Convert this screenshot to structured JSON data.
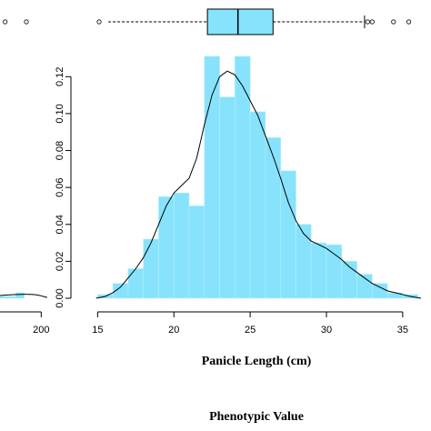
{
  "colors": {
    "bar_fill": "#87e3fb",
    "bar_edge": "#b6eefd",
    "box_fill": "#87e3fb",
    "curve": "#000000",
    "axis": "#000000"
  },
  "chart_data": [
    {
      "type": "histogram",
      "xlabel": "Panicle Length (cm)",
      "ylabel": "",
      "xlim": [
        14.8,
        36.2
      ],
      "ylim": [
        0,
        0.13
      ],
      "x_ticks": [
        15,
        20,
        25,
        30,
        35
      ],
      "x_tick_labels": [
        "15",
        "20",
        "25",
        "30",
        "35"
      ],
      "y_ticks": [
        0.0,
        0.02,
        0.04,
        0.06,
        0.08,
        0.1,
        0.12
      ],
      "y_tick_labels": [
        "0.00",
        "0.02",
        "0.04",
        "0.06",
        "0.08",
        "0.10",
        "0.12"
      ],
      "bins": [
        {
          "start": 15,
          "end": 16,
          "density": 0.002
        },
        {
          "start": 16,
          "end": 17,
          "density": 0.008
        },
        {
          "start": 17,
          "end": 18,
          "density": 0.016
        },
        {
          "start": 18,
          "end": 19,
          "density": 0.032
        },
        {
          "start": 19,
          "end": 20,
          "density": 0.055
        },
        {
          "start": 20,
          "end": 21,
          "density": 0.057
        },
        {
          "start": 21,
          "end": 22,
          "density": 0.05
        },
        {
          "start": 22,
          "end": 23,
          "density": 0.131
        },
        {
          "start": 23,
          "end": 24,
          "density": 0.109
        },
        {
          "start": 24,
          "end": 25,
          "density": 0.131
        },
        {
          "start": 25,
          "end": 26,
          "density": 0.101
        },
        {
          "start": 26,
          "end": 27,
          "density": 0.087
        },
        {
          "start": 27,
          "end": 28,
          "density": 0.069
        },
        {
          "start": 28,
          "end": 29,
          "density": 0.04
        },
        {
          "start": 29,
          "end": 30,
          "density": 0.03
        },
        {
          "start": 30,
          "end": 31,
          "density": 0.029
        },
        {
          "start": 31,
          "end": 32,
          "density": 0.02
        },
        {
          "start": 32,
          "end": 33,
          "density": 0.013
        },
        {
          "start": 33,
          "end": 34,
          "density": 0.008
        },
        {
          "start": 34,
          "end": 35,
          "density": 0.003
        },
        {
          "start": 35,
          "end": 36,
          "density": 0.002
        }
      ],
      "density_curve": [
        [
          14.9,
          0.0
        ],
        [
          15.5,
          0.001
        ],
        [
          16.0,
          0.003
        ],
        [
          16.5,
          0.006
        ],
        [
          17.0,
          0.011
        ],
        [
          17.5,
          0.016
        ],
        [
          18.0,
          0.022
        ],
        [
          18.5,
          0.03
        ],
        [
          19.0,
          0.04
        ],
        [
          19.5,
          0.05
        ],
        [
          20.0,
          0.057
        ],
        [
          20.5,
          0.061
        ],
        [
          21.0,
          0.065
        ],
        [
          21.5,
          0.076
        ],
        [
          22.0,
          0.094
        ],
        [
          22.5,
          0.11
        ],
        [
          23.0,
          0.12
        ],
        [
          23.5,
          0.123
        ],
        [
          24.0,
          0.121
        ],
        [
          24.5,
          0.115
        ],
        [
          25.0,
          0.107
        ],
        [
          25.5,
          0.099
        ],
        [
          26.0,
          0.088
        ],
        [
          26.5,
          0.077
        ],
        [
          27.0,
          0.065
        ],
        [
          27.5,
          0.052
        ],
        [
          28.0,
          0.042
        ],
        [
          28.5,
          0.035
        ],
        [
          29.0,
          0.031
        ],
        [
          29.5,
          0.029
        ],
        [
          30.0,
          0.027
        ],
        [
          30.5,
          0.024
        ],
        [
          31.0,
          0.021
        ],
        [
          31.5,
          0.017
        ],
        [
          32.0,
          0.014
        ],
        [
          32.5,
          0.011
        ],
        [
          33.0,
          0.008
        ],
        [
          33.5,
          0.006
        ],
        [
          34.0,
          0.004
        ],
        [
          34.5,
          0.003
        ],
        [
          35.0,
          0.002
        ],
        [
          35.5,
          0.001
        ],
        [
          36.2,
          0.0
        ]
      ],
      "boxplot": {
        "min": 15.7,
        "q1": 22.2,
        "median": 24.2,
        "q3": 26.5,
        "max": 32.5,
        "outliers": [
          15.1,
          32.7,
          33.0,
          34.4,
          35.4
        ]
      }
    },
    {
      "type": "histogram",
      "xlabel": "Phenotypic Value",
      "partial": true,
      "x_ticks": [
        200
      ],
      "x_tick_labels": [
        "200"
      ],
      "xlim": [
        172,
        202
      ],
      "ylim": [
        0,
        0.13
      ],
      "bins": [
        {
          "start": 178,
          "end": 188,
          "density": 0.001
        },
        {
          "start": 188,
          "end": 192,
          "density": 0.003
        }
      ],
      "boxplot": {
        "outliers": [
          183,
          193
        ]
      }
    }
  ]
}
